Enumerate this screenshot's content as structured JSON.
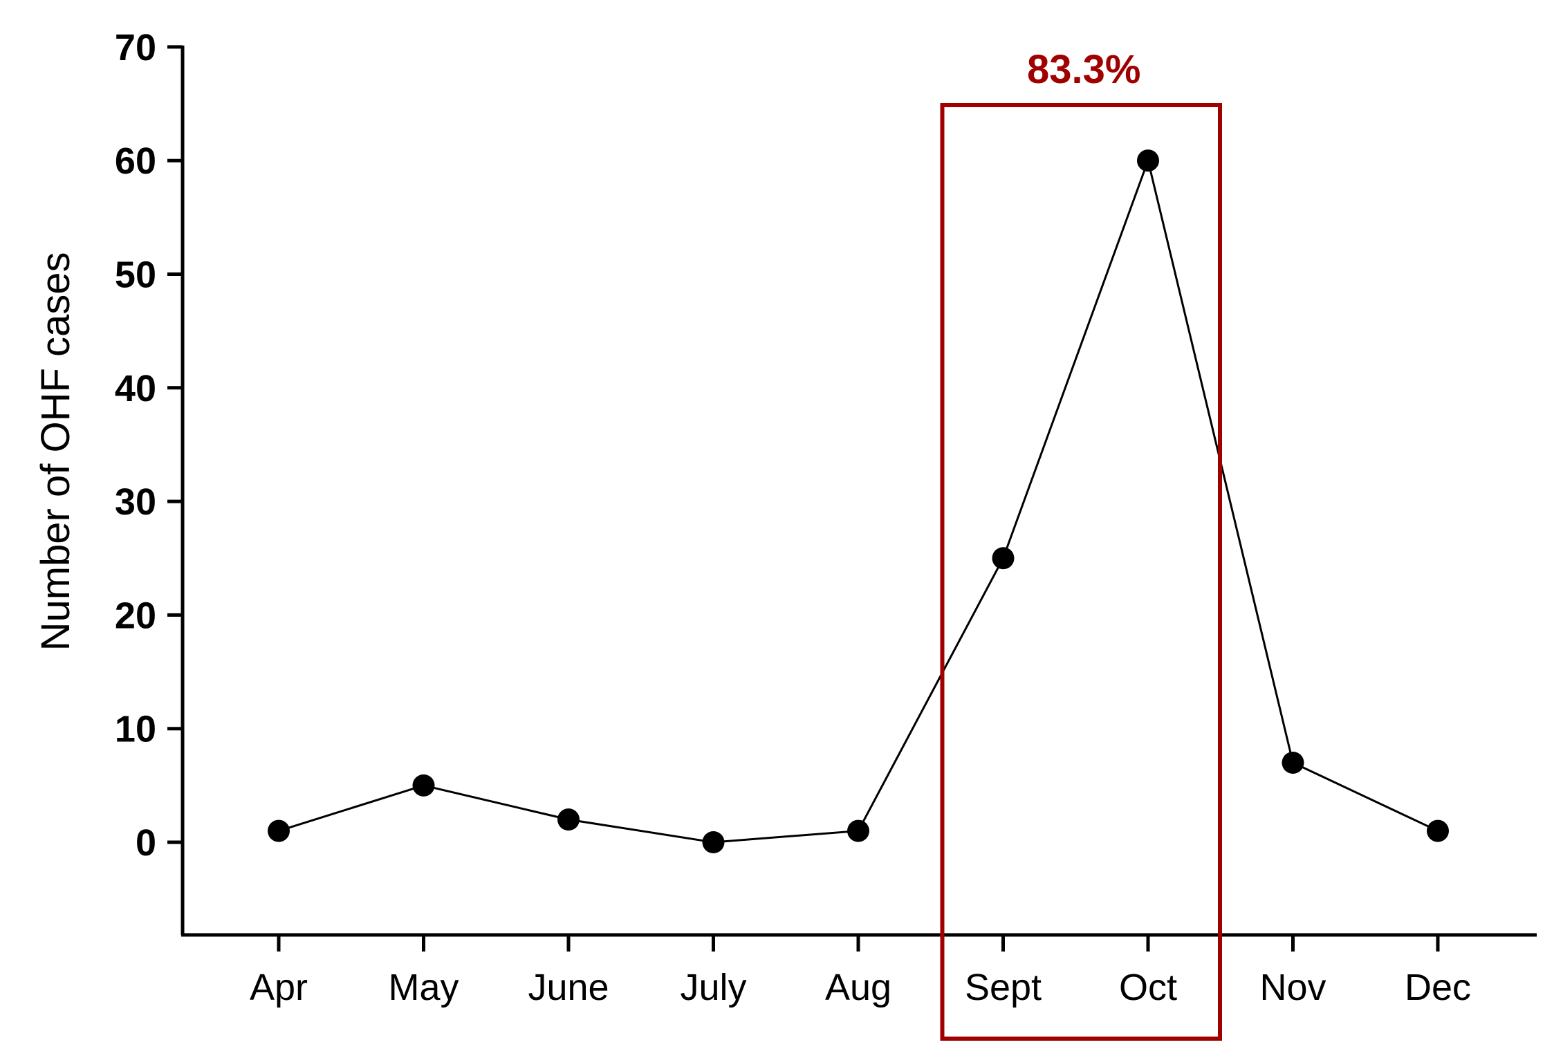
{
  "chart_data": {
    "type": "line",
    "categories": [
      "Apr",
      "May",
      "June",
      "July",
      "Aug",
      "Sept",
      "Oct",
      "Nov",
      "Dec"
    ],
    "values": [
      1,
      5,
      2,
      0,
      1,
      25,
      60,
      7,
      1
    ],
    "xlabel": "",
    "ylabel": "Number of OHF cases",
    "ylim": [
      -8,
      70
    ],
    "yticks": [
      0,
      10,
      20,
      30,
      40,
      50,
      60,
      70
    ],
    "grid": false,
    "legend": "none",
    "annotation": {
      "text": "83.3%",
      "highlighted_categories": [
        "Sept",
        "Oct"
      ]
    }
  },
  "colors": {
    "line": "#000000",
    "marker": "#000000",
    "axis": "#000000",
    "highlight": "#a00000"
  }
}
